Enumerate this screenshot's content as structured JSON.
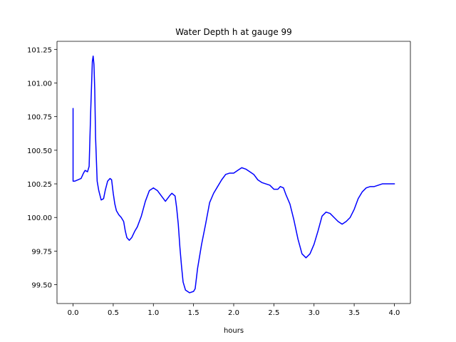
{
  "chart_data": {
    "type": "line",
    "title": "Water Depth h at gauge 99",
    "xlabel": "hours",
    "ylabel": "",
    "xlim": [
      -0.2,
      4.2
    ],
    "ylim": [
      99.36,
      101.31
    ],
    "xticks": [
      0,
      0.5,
      1,
      1.5,
      2,
      2.5,
      3,
      3.5,
      4
    ],
    "xtick_labels": [
      "0.0",
      "0.5",
      "1.0",
      "1.5",
      "2.0",
      "2.5",
      "3.0",
      "3.5",
      "4.0"
    ],
    "yticks": [
      99.5,
      99.75,
      100,
      100.25,
      100.5,
      100.75,
      101,
      101.25
    ],
    "ytick_labels": [
      "99.50",
      "99.75",
      "100.00",
      "100.25",
      "100.50",
      "100.75",
      "101.00",
      "101.25"
    ],
    "grid": false,
    "series": [
      {
        "color": "#0000ff",
        "x": [
          0.0,
          0.0,
          0.02,
          0.06,
          0.1,
          0.13,
          0.15,
          0.18,
          0.2,
          0.22,
          0.24,
          0.25,
          0.26,
          0.27,
          0.28,
          0.3,
          0.32,
          0.35,
          0.38,
          0.4,
          0.43,
          0.46,
          0.48,
          0.5,
          0.52,
          0.54,
          0.57,
          0.6,
          0.63,
          0.65,
          0.67,
          0.7,
          0.73,
          0.77,
          0.8,
          0.85,
          0.9,
          0.95,
          1.0,
          1.05,
          1.1,
          1.15,
          1.2,
          1.23,
          1.27,
          1.29,
          1.31,
          1.33,
          1.35,
          1.37,
          1.4,
          1.45,
          1.5,
          1.52,
          1.55,
          1.6,
          1.65,
          1.7,
          1.75,
          1.8,
          1.85,
          1.9,
          1.95,
          2.0,
          2.05,
          2.1,
          2.15,
          2.2,
          2.25,
          2.3,
          2.35,
          2.4,
          2.45,
          2.5,
          2.55,
          2.58,
          2.62,
          2.65,
          2.7,
          2.75,
          2.8,
          2.85,
          2.9,
          2.95,
          3.0,
          3.05,
          3.1,
          3.15,
          3.2,
          3.25,
          3.3,
          3.35,
          3.4,
          3.45,
          3.5,
          3.55,
          3.6,
          3.65,
          3.7,
          3.75,
          3.8,
          3.85,
          3.9,
          3.95,
          4.0
        ],
        "y": [
          100.81,
          100.27,
          100.27,
          100.28,
          100.29,
          100.33,
          100.35,
          100.34,
          100.38,
          100.8,
          101.16,
          101.2,
          101.14,
          100.95,
          100.6,
          100.27,
          100.2,
          100.13,
          100.14,
          100.2,
          100.27,
          100.29,
          100.28,
          100.18,
          100.1,
          100.05,
          100.02,
          100.0,
          99.97,
          99.9,
          99.85,
          99.83,
          99.85,
          99.9,
          99.93,
          100.01,
          100.12,
          100.2,
          100.22,
          100.2,
          100.16,
          100.12,
          100.16,
          100.18,
          100.16,
          100.07,
          99.95,
          99.78,
          99.64,
          99.52,
          99.46,
          99.44,
          99.45,
          99.47,
          99.62,
          99.8,
          99.95,
          100.11,
          100.18,
          100.23,
          100.28,
          100.32,
          100.33,
          100.33,
          100.35,
          100.37,
          100.36,
          100.34,
          100.32,
          100.28,
          100.26,
          100.25,
          100.24,
          100.21,
          100.21,
          100.23,
          100.22,
          100.17,
          100.1,
          99.98,
          99.84,
          99.73,
          99.7,
          99.73,
          99.8,
          99.9,
          100.01,
          100.04,
          100.03,
          100.0,
          99.97,
          99.95,
          99.97,
          100.0,
          100.06,
          100.14,
          100.19,
          100.22,
          100.23,
          100.23,
          100.24,
          100.25,
          100.25,
          100.25,
          100.25
        ]
      }
    ]
  }
}
